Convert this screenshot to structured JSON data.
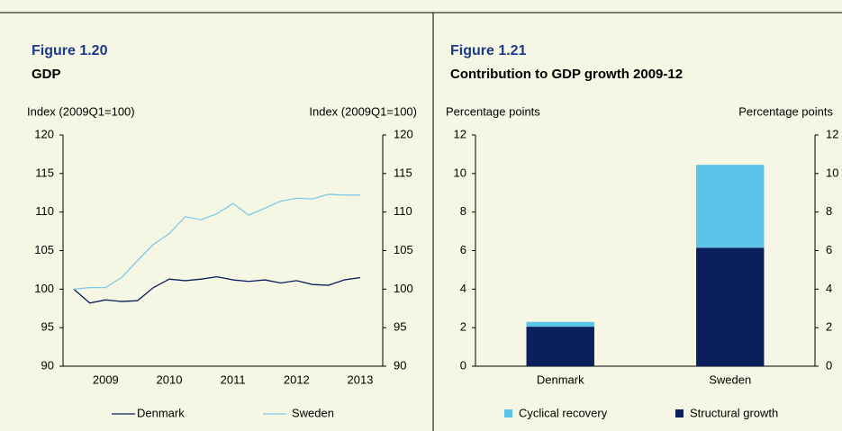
{
  "chart_data": [
    {
      "type": "line",
      "title": "Figure 1.20",
      "subtitle": "GDP",
      "ylabel": "Index (2009Q1=100)",
      "y2label": "Index (2009Q1=100)",
      "categories": [
        null,
        null,
        "2009",
        null,
        null,
        null,
        "2010",
        null,
        null,
        null,
        "2011",
        null,
        null,
        null,
        "2012",
        null,
        null,
        null,
        "2013"
      ],
      "series": [
        {
          "name": "Denmark",
          "color": "#0a1f5c",
          "values": [
            100,
            98.2,
            98.6,
            98.4,
            98.5,
            100.2,
            101.3,
            101.1,
            101.3,
            101.6,
            101.2,
            101.0,
            101.2,
            100.8,
            101.1,
            100.6,
            100.5,
            101.2,
            101.5
          ]
        },
        {
          "name": "Sweden",
          "color": "#7ecbe6",
          "values": [
            100,
            100.2,
            100.2,
            101.5,
            103.7,
            105.8,
            107.2,
            109.4,
            109.0,
            109.8,
            111.1,
            109.6,
            110.5,
            111.4,
            111.8,
            111.7,
            112.3,
            112.2,
            112.2
          ]
        }
      ],
      "ylim": [
        90,
        120
      ],
      "yticks": [
        90,
        95,
        100,
        105,
        110,
        115,
        120
      ],
      "y2lim": [
        90,
        120
      ],
      "y2ticks": [
        90,
        95,
        100,
        105,
        110,
        115,
        120
      ]
    },
    {
      "type": "stacked_bar",
      "title": "Figure 1.21",
      "subtitle": "Contribution to GDP growth 2009-12",
      "ylabel": "Percentage points",
      "y2label": "Percentage points",
      "categories": [
        "Denmark",
        "Sweden"
      ],
      "series": [
        {
          "name": "Cyclical recovery",
          "color": "#5cc4e8",
          "values": [
            0.25,
            4.3
          ]
        },
        {
          "name": "Structural growth",
          "color": "#0a1f5c",
          "values": [
            2.05,
            6.15
          ]
        }
      ],
      "ylim": [
        0,
        12
      ],
      "yticks": [
        0,
        2,
        4,
        6,
        8,
        10,
        12
      ],
      "y2lim": [
        0,
        12
      ],
      "y2ticks": [
        0,
        2,
        4,
        6,
        8,
        10,
        12
      ]
    }
  ]
}
